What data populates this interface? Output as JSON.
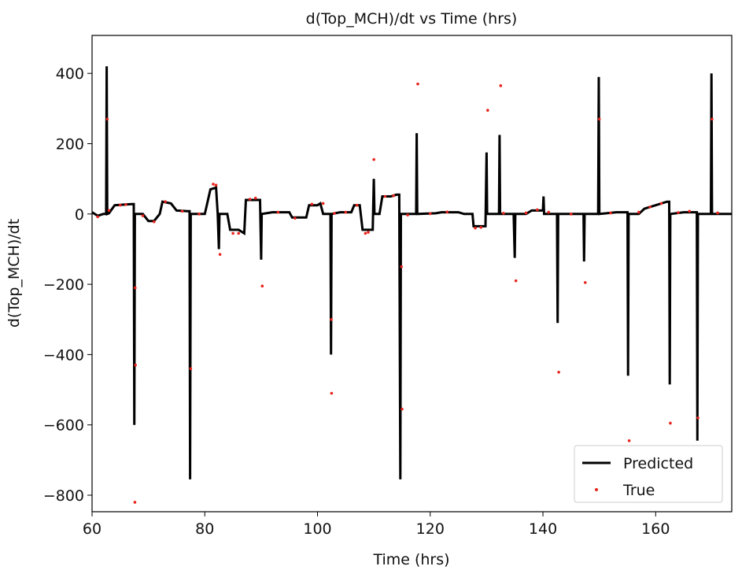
{
  "chart_data": {
    "type": "line",
    "title": "d(Top_MCH)/dt vs Time (hrs)",
    "x_label": "Time (hrs)",
    "y_label": "d(Top_MCH)/dt",
    "xlim": [
      60,
      173.5
    ],
    "ylim": [
      -847,
      508
    ],
    "xticks": [
      60,
      80,
      100,
      120,
      140,
      160
    ],
    "yticks": [
      {
        "value": -800,
        "label": "−800"
      },
      {
        "value": -600,
        "label": "−600"
      },
      {
        "value": -400,
        "label": "−400"
      },
      {
        "value": -200,
        "label": "−200"
      },
      0,
      200,
      400
    ],
    "legend": "lower right",
    "series": [
      {
        "name": "Predicted",
        "color": "#000000",
        "kind": "line",
        "x": [
          60,
          61,
          62,
          62.5,
          62.6,
          62.7,
          63,
          64,
          67,
          67.4,
          67.5,
          67.6,
          69,
          70,
          71,
          72,
          72.5,
          74,
          75,
          77,
          77.3,
          77.4,
          77.5,
          80,
          81,
          82,
          82.3,
          82.5,
          82.6,
          84,
          84.5,
          86,
          87,
          87.3,
          89,
          89.8,
          90,
          90.1,
          92,
          95,
          95.5,
          98,
          98.5,
          100,
          100.5,
          101,
          102.3,
          102.4,
          102.5,
          104,
          106,
          106.5,
          107.5,
          108,
          109.5,
          109.8,
          110,
          110.1,
          111,
          111.5,
          113,
          114,
          114.5,
          114.7,
          114.8,
          117.5,
          117.6,
          117.7,
          121,
          122,
          125,
          126,
          127.5,
          127.7,
          129.5,
          129.8,
          130,
          130.1,
          132.2,
          132.3,
          132.4,
          134.8,
          135,
          135.1,
          137,
          138,
          140,
          140.1,
          140.2,
          142.5,
          142.6,
          142.7,
          147.2,
          147.3,
          147.4,
          149.8,
          149.9,
          150,
          153,
          155,
          155.1,
          155.2,
          157,
          158,
          160,
          162,
          162.4,
          162.5,
          162.6,
          165,
          167,
          167.3,
          167.4,
          167.5,
          169.8,
          169.9,
          170,
          173.5
        ],
        "values": [
          5,
          -5,
          0,
          0,
          420,
          0,
          2,
          25,
          28,
          28,
          -600,
          0,
          0,
          -20,
          -20,
          0,
          35,
          30,
          10,
          8,
          8,
          -755,
          0,
          0,
          70,
          75,
          0,
          -100,
          0,
          0,
          -45,
          -45,
          -55,
          40,
          40,
          40,
          -130,
          0,
          5,
          5,
          -10,
          -10,
          25,
          25,
          30,
          0,
          0,
          -400,
          0,
          5,
          5,
          25,
          25,
          -45,
          -45,
          -45,
          100,
          0,
          0,
          50,
          50,
          55,
          55,
          -755,
          0,
          0,
          230,
          0,
          2,
          5,
          5,
          0,
          0,
          -35,
          -35,
          -35,
          175,
          0,
          0,
          225,
          0,
          0,
          -125,
          0,
          0,
          10,
          10,
          50,
          0,
          0,
          -310,
          0,
          0,
          -135,
          0,
          0,
          390,
          0,
          5,
          5,
          -460,
          0,
          0,
          15,
          25,
          35,
          35,
          -485,
          0,
          5,
          5,
          5,
          -645,
          0,
          0,
          400,
          0,
          0
        ]
      },
      {
        "name": "True",
        "color": "#e8231c",
        "kind": "scatter",
        "x": [
          62.7,
          67.6,
          67.7,
          67.65,
          77.5,
          82.7,
          90.2,
          102.5,
          102.45,
          110,
          115,
          114.9,
          117.8,
          130.2,
          132.5,
          135.2,
          142.8,
          147.5,
          150,
          155.3,
          162.6,
          167.5,
          170,
          61,
          63,
          65,
          66,
          69,
          71,
          73,
          76,
          79,
          81.5,
          82,
          85,
          86,
          88,
          89,
          93,
          96,
          99,
          101,
          103,
          105,
          107,
          108.5,
          109,
          112,
          113.5,
          116,
          120,
          123,
          128,
          129,
          133,
          137,
          139,
          141,
          145,
          152,
          157,
          159,
          161,
          164,
          166,
          171
        ],
        "values": [
          270,
          -820,
          -430,
          -210,
          -440,
          -115,
          -205,
          -510,
          -300,
          155,
          -555,
          -150,
          370,
          295,
          365,
          -190,
          -450,
          -195,
          270,
          -645,
          -595,
          -580,
          270,
          -8,
          10,
          25,
          27,
          -5,
          -22,
          35,
          8,
          0,
          85,
          82,
          -55,
          -55,
          42,
          45,
          5,
          -12,
          28,
          30,
          2,
          5,
          25,
          -55,
          -52,
          50,
          52,
          -3,
          1,
          6,
          -40,
          -38,
          2,
          3,
          12,
          5,
          0,
          3,
          5,
          20,
          30,
          4,
          8,
          3
        ]
      }
    ]
  }
}
